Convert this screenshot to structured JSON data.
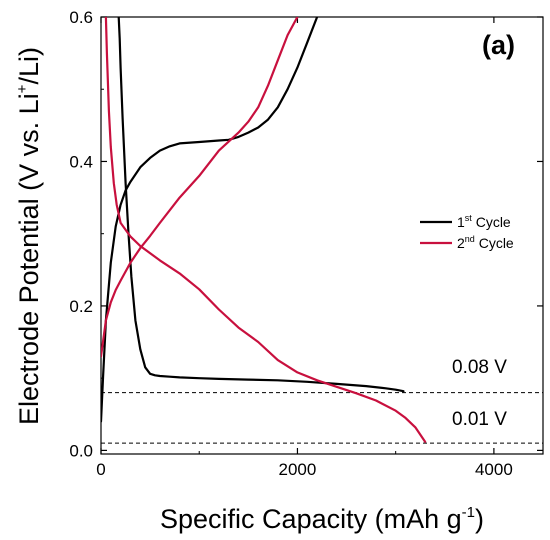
{
  "chart_data": {
    "type": "line",
    "panel_label": "(a)",
    "xlabel": "Specific Capacity (mAh g",
    "xlabel_sup": "-1",
    "xlabel_end": ")",
    "ylabel": "Electrode Potential (V vs. Li",
    "ylabel_sup": "+",
    "ylabel_end": "/Li)",
    "xlim": [
      0,
      4500
    ],
    "ylim": [
      -0.005,
      0.6
    ],
    "x_ticks": [
      0,
      2000,
      4000
    ],
    "x_tick_labels": [
      "0",
      "2000",
      "4000"
    ],
    "y_ticks": [
      0.0,
      0.2,
      0.4,
      0.6
    ],
    "y_tick_labels": [
      "0.0",
      "0.2",
      "0.4",
      "0.6"
    ],
    "grid": false,
    "legend_position": "right",
    "reference_lines": [
      {
        "y": 0.08,
        "label": "0.08 V",
        "style": "dashed"
      },
      {
        "y": 0.01,
        "label": "0.01 V",
        "style": "dashed"
      }
    ],
    "series": [
      {
        "name": "1",
        "name_sup": "st",
        "name_end": " Cycle",
        "color": "#000000",
        "segments": [
          {
            "x": [
              180,
              190,
              200,
              220,
              250,
              280,
              310,
              350,
              400,
              450,
              500,
              550,
              600,
              700,
              800,
              1000,
              1200,
              1500,
              1800,
              2100,
              2400,
              2700,
              2900,
              3000,
              3080
            ],
            "y": [
              0.6,
              0.57,
              0.53,
              0.46,
              0.37,
              0.3,
              0.24,
              0.18,
              0.14,
              0.115,
              0.106,
              0.104,
              0.103,
              0.102,
              0.101,
              0.1,
              0.099,
              0.098,
              0.097,
              0.095,
              0.092,
              0.089,
              0.086,
              0.084,
              0.082
            ]
          },
          {
            "x": [
              0,
              20,
              50,
              100,
              150,
              200,
              250,
              300,
              400,
              500,
              600,
              700,
              800,
              1000,
              1200,
              1300,
              1400,
              1500,
              1600,
              1700,
              1800,
              1900,
              2000,
              2100,
              2200
            ],
            "y": [
              0.04,
              0.1,
              0.18,
              0.26,
              0.31,
              0.34,
              0.36,
              0.372,
              0.392,
              0.405,
              0.415,
              0.421,
              0.425,
              0.427,
              0.429,
              0.43,
              0.434,
              0.44,
              0.447,
              0.458,
              0.475,
              0.5,
              0.53,
              0.565,
              0.6
            ]
          }
        ]
      },
      {
        "name": "2",
        "name_sup": "nd",
        "name_end": " Cycle",
        "color": "#c8103e",
        "segments": [
          {
            "x": [
              50,
              60,
              80,
              100,
              130,
              160,
              200,
              300,
              400,
              600,
              800,
              1000,
              1200,
              1400,
              1600,
              1800,
              2000,
              2200,
              2400,
              2600,
              2800,
              3000,
              3100,
              3200,
              3300
            ],
            "y": [
              0.6,
              0.55,
              0.47,
              0.42,
              0.37,
              0.34,
              0.315,
              0.296,
              0.283,
              0.263,
              0.245,
              0.223,
              0.195,
              0.17,
              0.15,
              0.125,
              0.108,
              0.097,
              0.088,
              0.079,
              0.069,
              0.055,
              0.045,
              0.032,
              0.012
            ]
          },
          {
            "x": [
              0,
              50,
              100,
              150,
              200,
              300,
              400,
              500,
              600,
              800,
              1000,
              1200,
              1400,
              1500,
              1600,
              1700,
              1800,
              1900,
              2000
            ],
            "y": [
              0.13,
              0.18,
              0.205,
              0.222,
              0.235,
              0.26,
              0.28,
              0.297,
              0.315,
              0.35,
              0.38,
              0.415,
              0.44,
              0.455,
              0.475,
              0.505,
              0.54,
              0.575,
              0.6
            ]
          }
        ]
      }
    ]
  }
}
